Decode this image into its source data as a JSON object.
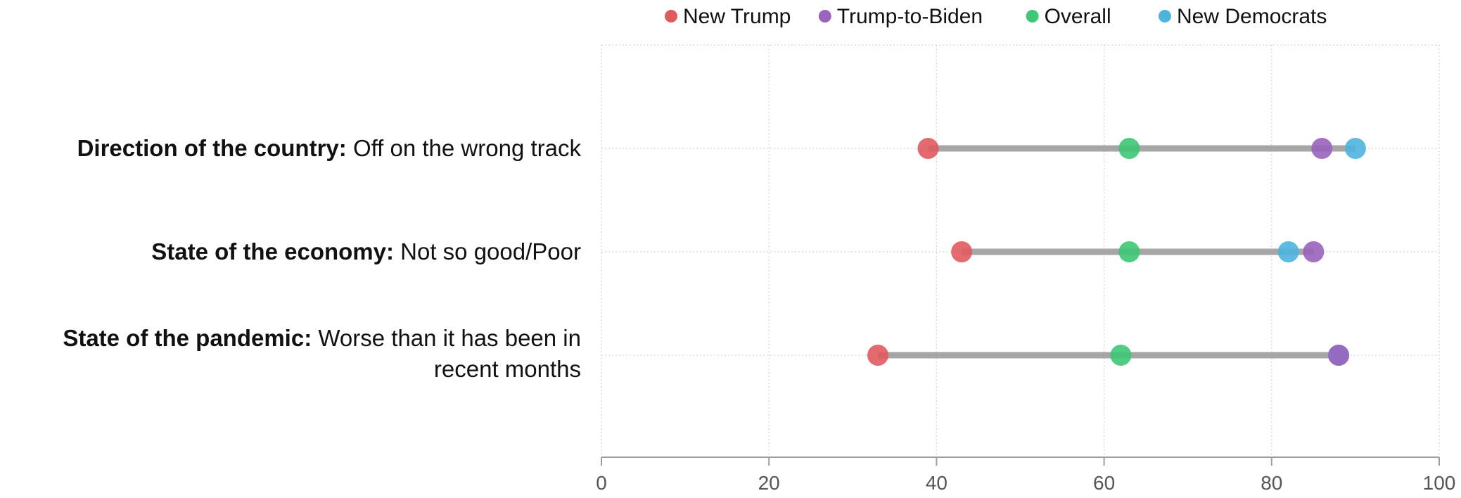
{
  "chart_data": {
    "type": "dot-range",
    "categories": [
      {
        "bold": "Direction of the country:",
        "rest": "Off on the wrong track",
        "rest2": ""
      },
      {
        "bold": "State of the economy:",
        "rest": "Not so good/Poor",
        "rest2": ""
      },
      {
        "bold": "State of the pandemic:",
        "rest": "Worse than it has been in",
        "rest2": "recent months"
      }
    ],
    "series": [
      {
        "name": "New Trump",
        "color": "#e05a5e",
        "values": [
          39,
          43,
          33
        ]
      },
      {
        "name": "Trump-to-Biden",
        "color": "#9a63bd",
        "values": [
          86,
          85,
          88
        ]
      },
      {
        "name": "Overall",
        "color": "#3ec775",
        "values": [
          63,
          63,
          62
        ]
      },
      {
        "name": "New Democrats",
        "color": "#4db4de",
        "values": [
          90,
          82,
          88
        ]
      }
    ],
    "xlim": [
      0,
      100
    ],
    "xticks": [
      "0",
      "20",
      "40",
      "60",
      "80",
      "100"
    ],
    "legend_position": "top",
    "grid": true,
    "range_bar_color": "#a6a6a6"
  }
}
